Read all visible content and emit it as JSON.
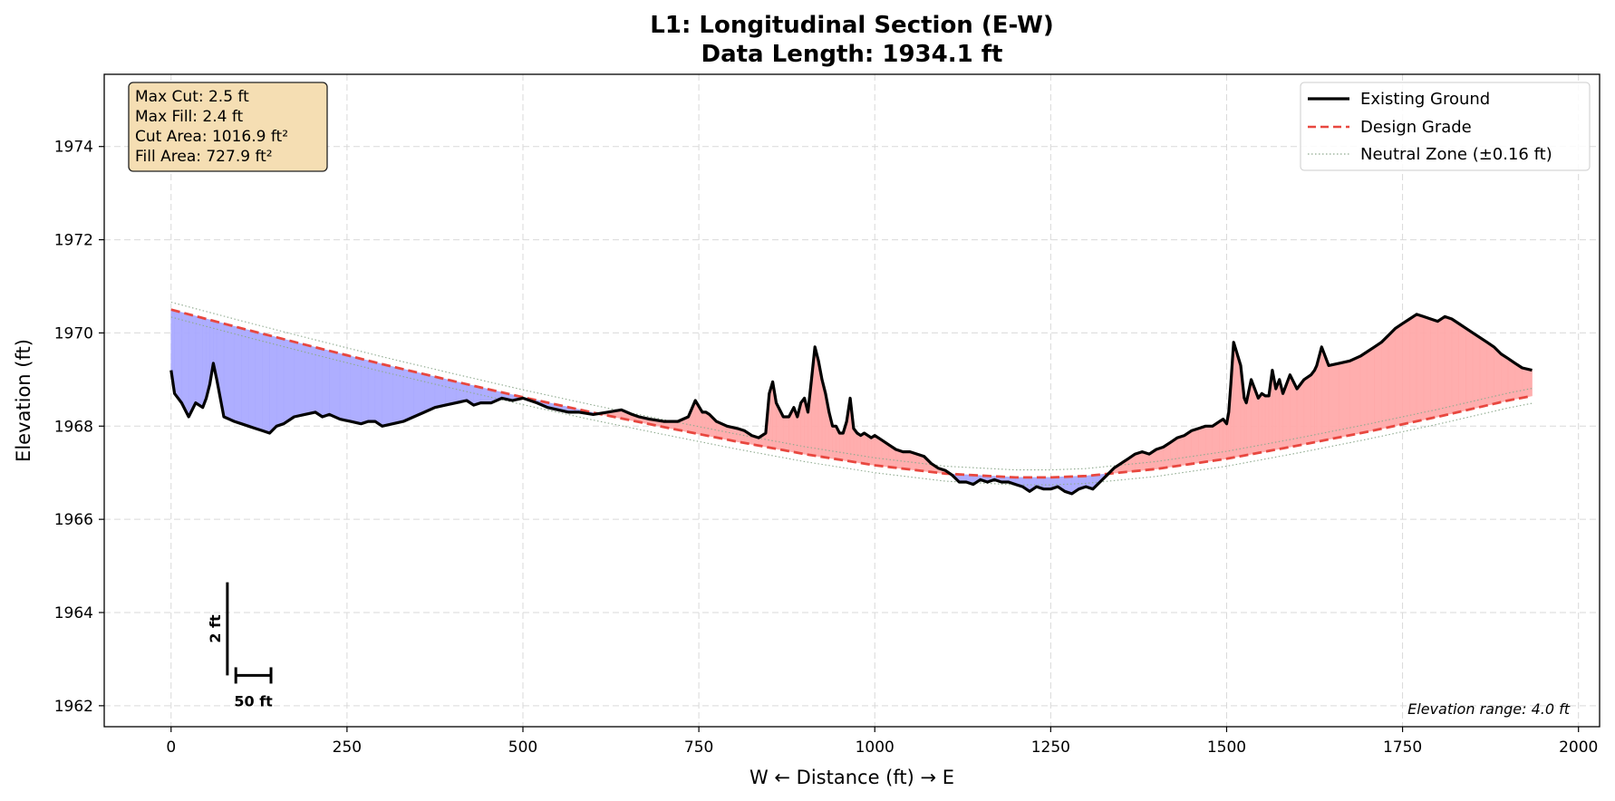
{
  "chart_data": {
    "type": "line",
    "title": "L1: Longitudinal Section (E-W)",
    "subtitle": "Data Length: 1934.1 ft",
    "xlabel": "W ← Distance (ft) → E",
    "ylabel": "Elevation (ft)",
    "xlim": [
      -95,
      2030
    ],
    "ylim": [
      1961.55,
      1975.55
    ],
    "x_ticks": [
      0,
      250,
      500,
      750,
      1000,
      1250,
      1500,
      1750,
      2000
    ],
    "y_ticks": [
      1962,
      1964,
      1966,
      1968,
      1970,
      1972,
      1974
    ],
    "grid": true,
    "legend_position": "top-right",
    "series": [
      {
        "name": "Existing Ground",
        "color": "#000000",
        "style": "solid",
        "x": [
          0,
          5,
          15,
          25,
          35,
          45,
          50,
          55,
          60,
          65,
          75,
          90,
          100,
          110,
          120,
          130,
          140,
          150,
          160,
          175,
          190,
          205,
          215,
          225,
          240,
          255,
          270,
          280,
          290,
          300,
          315,
          330,
          345,
          360,
          375,
          390,
          405,
          420,
          430,
          440,
          455,
          470,
          485,
          500,
          510,
          520,
          535,
          550,
          565,
          580,
          600,
          620,
          640,
          655,
          665,
          680,
          700,
          720,
          735,
          745,
          755,
          760,
          765,
          775,
          790,
          805,
          815,
          825,
          835,
          845,
          850,
          855,
          860,
          870,
          878,
          885,
          890,
          895,
          900,
          905,
          910,
          915,
          920,
          925,
          930,
          935,
          940,
          945,
          950,
          955,
          960,
          965,
          970,
          975,
          980,
          985,
          990,
          995,
          1000,
          1010,
          1020,
          1030,
          1040,
          1050,
          1060,
          1070,
          1080,
          1090,
          1100,
          1110,
          1120,
          1130,
          1140,
          1150,
          1160,
          1170,
          1180,
          1190,
          1200,
          1210,
          1220,
          1230,
          1240,
          1250,
          1260,
          1270,
          1280,
          1290,
          1300,
          1310,
          1320,
          1330,
          1340,
          1350,
          1360,
          1370,
          1380,
          1390,
          1400,
          1410,
          1420,
          1430,
          1440,
          1450,
          1460,
          1470,
          1480,
          1490,
          1495,
          1500,
          1503,
          1506,
          1510,
          1520,
          1525,
          1528,
          1535,
          1545,
          1550,
          1555,
          1560,
          1565,
          1570,
          1575,
          1580,
          1590,
          1600,
          1610,
          1620,
          1625,
          1628,
          1635,
          1645,
          1660,
          1675,
          1690,
          1700,
          1710,
          1720,
          1730,
          1740,
          1750,
          1760,
          1770,
          1780,
          1790,
          1800,
          1810,
          1820,
          1830,
          1840,
          1850,
          1860,
          1870,
          1880,
          1890,
          1900,
          1910,
          1920,
          1934
        ],
        "values": [
          1969.2,
          1968.7,
          1968.5,
          1968.2,
          1968.5,
          1968.4,
          1968.6,
          1968.9,
          1969.35,
          1969.0,
          1968.2,
          1968.1,
          1968.05,
          1968.0,
          1967.95,
          1967.9,
          1967.85,
          1968.0,
          1968.05,
          1968.2,
          1968.25,
          1968.3,
          1968.2,
          1968.25,
          1968.15,
          1968.1,
          1968.05,
          1968.1,
          1968.1,
          1968.0,
          1968.05,
          1968.1,
          1968.2,
          1968.3,
          1968.4,
          1968.45,
          1968.5,
          1968.55,
          1968.45,
          1968.5,
          1968.5,
          1968.6,
          1968.55,
          1968.6,
          1968.55,
          1968.5,
          1968.4,
          1968.35,
          1968.3,
          1968.3,
          1968.25,
          1968.3,
          1968.35,
          1968.25,
          1968.2,
          1968.15,
          1968.1,
          1968.1,
          1968.2,
          1968.55,
          1968.3,
          1968.3,
          1968.25,
          1968.1,
          1968.0,
          1967.95,
          1967.9,
          1967.8,
          1967.75,
          1967.85,
          1968.7,
          1968.95,
          1968.5,
          1968.2,
          1968.2,
          1968.4,
          1968.2,
          1968.5,
          1968.6,
          1968.3,
          1969.0,
          1969.7,
          1969.4,
          1969.0,
          1968.7,
          1968.3,
          1968.0,
          1968.0,
          1967.85,
          1967.85,
          1968.1,
          1968.6,
          1967.95,
          1967.85,
          1967.8,
          1967.85,
          1967.8,
          1967.75,
          1967.8,
          1967.7,
          1967.6,
          1967.5,
          1967.45,
          1967.45,
          1967.4,
          1967.35,
          1967.2,
          1967.1,
          1967.05,
          1966.95,
          1966.8,
          1966.8,
          1966.75,
          1966.85,
          1966.8,
          1966.85,
          1966.8,
          1966.8,
          1966.75,
          1966.7,
          1966.6,
          1966.7,
          1966.65,
          1966.65,
          1966.7,
          1966.6,
          1966.55,
          1966.65,
          1966.7,
          1966.65,
          1966.8,
          1966.95,
          1967.1,
          1967.2,
          1967.3,
          1967.4,
          1967.45,
          1967.4,
          1967.5,
          1967.55,
          1967.65,
          1967.75,
          1967.8,
          1967.9,
          1967.95,
          1968.0,
          1968.0,
          1968.1,
          1968.15,
          1968.05,
          1968.3,
          1968.9,
          1969.8,
          1969.3,
          1968.6,
          1968.5,
          1969.0,
          1968.6,
          1968.7,
          1968.65,
          1968.65,
          1969.2,
          1968.8,
          1969.0,
          1968.7,
          1969.1,
          1968.8,
          1969.0,
          1969.1,
          1969.2,
          1969.3,
          1969.7,
          1969.3,
          1969.35,
          1969.4,
          1969.5,
          1969.6,
          1969.7,
          1969.8,
          1969.95,
          1970.1,
          1970.2,
          1970.3,
          1970.4,
          1970.35,
          1970.3,
          1970.25,
          1970.35,
          1970.3,
          1970.2,
          1970.1,
          1970.0,
          1969.9,
          1969.8,
          1969.7,
          1969.55,
          1969.45,
          1969.35,
          1969.25,
          1969.2
        ]
      },
      {
        "name": "Design Grade",
        "color": "#e8473f",
        "style": "dashed",
        "x": [
          0,
          100,
          200,
          300,
          400,
          500,
          600,
          700,
          800,
          900,
          1000,
          1100,
          1200,
          1250,
          1300,
          1400,
          1500,
          1600,
          1700,
          1800,
          1900,
          1934
        ],
        "values": [
          1970.5,
          1970.1,
          1969.71,
          1969.33,
          1968.97,
          1968.62,
          1968.29,
          1967.98,
          1967.68,
          1967.4,
          1967.16,
          1966.98,
          1966.9,
          1966.9,
          1966.93,
          1967.08,
          1967.3,
          1967.58,
          1967.88,
          1968.2,
          1968.55,
          1968.65
        ]
      },
      {
        "name": "Neutral Zone (±0.16 ft)",
        "color": "#8faa8f",
        "style": "dotted",
        "offset": 0.16
      }
    ],
    "fill_colors": {
      "cut": "#aaaaff",
      "fill": "#ffaaaa"
    },
    "stats": [
      "Max Cut: 2.5 ft",
      "Max Fill: 2.4 ft",
      "Cut Area: 1016.9 ft²",
      "Fill Area: 727.9 ft²"
    ],
    "scale_bar": {
      "vertical_label": "2 ft",
      "vertical_value": 2,
      "horizontal_label": "50 ft",
      "horizontal_value": 50
    },
    "note": "Elevation range: 4.0 ft"
  }
}
